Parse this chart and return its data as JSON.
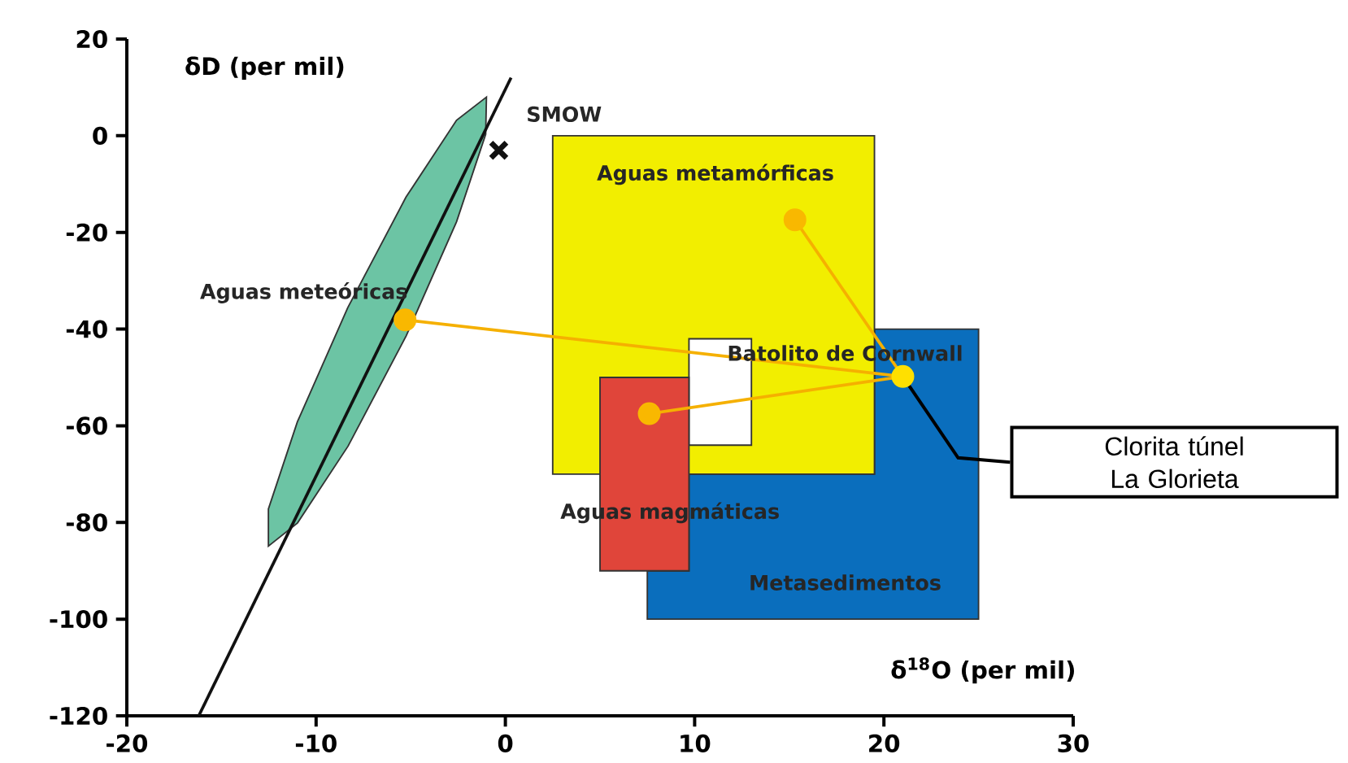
{
  "chart_data": {
    "type": "scatter",
    "xlabel": "δ$^{18}$O (per mil)",
    "ylabel": "δD (per mil)",
    "xlim": [
      -20,
      30
    ],
    "ylim": [
      -120,
      20
    ],
    "xticks": [
      -20,
      -10,
      0,
      10,
      20,
      30
    ],
    "yticks": [
      -120,
      -100,
      -80,
      -60,
      -40,
      -20,
      0,
      20
    ],
    "grid": false,
    "series": [
      {
        "type": "area",
        "color": "#6cc4a4",
        "x": [
          -1,
          -1.04,
          -2.58,
          -5.24,
          -8.31,
          -10.98,
          -12.52,
          -12.52,
          -10.99,
          -8.33,
          -5.25,
          -2.58
        ],
        "values": [
          8,
          0.3,
          -17.8,
          -41.4,
          -64.2,
          -80.1,
          -84.9,
          -77.2,
          -59.2,
          -35.6,
          -12.7,
          3.2
        ]
      },
      {
        "type": "area",
        "color": "#0a6ebd",
        "x": [
          7.5,
          7.5,
          9.7,
          9.7,
          19.5,
          19.5,
          25,
          25
        ],
        "values": [
          -100,
          -90,
          -90,
          -70,
          -70,
          -40,
          -40,
          -100
        ]
      },
      {
        "type": "area",
        "color": "#f2ee00",
        "x": [
          2.5,
          2.5,
          19.5,
          19.5
        ],
        "values": [
          -70,
          0,
          0,
          -70
        ]
      },
      {
        "type": "area",
        "color": "#ffffff",
        "x": [
          9.7,
          9.7,
          13,
          13
        ],
        "values": [
          -64,
          -42,
          -42,
          -64
        ]
      },
      {
        "type": "area",
        "color": "#e0453a",
        "x": [
          5,
          5,
          9.7,
          9.7
        ],
        "values": [
          -90,
          -50,
          -50,
          -90
        ]
      },
      {
        "type": "line",
        "color": "#111111",
        "x": [
          -16.2,
          0.3
        ],
        "values": [
          -120,
          12
        ]
      },
      {
        "type": "line",
        "color": "#f5b000",
        "x": [
          -5.3,
          21
        ],
        "values": [
          -38.1,
          -49.8
        ]
      },
      {
        "type": "line",
        "color": "#f5b000",
        "x": [
          15.3,
          21
        ],
        "values": [
          -17.4,
          -49.8
        ]
      },
      {
        "type": "line",
        "color": "#f5b000",
        "x": [
          7.6,
          21
        ],
        "values": [
          -57.5,
          -49.8
        ]
      },
      {
        "color": "#f9b800",
        "marker": "circle",
        "x": [
          -5.3,
          15.3,
          7.6
        ],
        "values": [
          -38.1,
          -17.4,
          -57.5
        ]
      },
      {
        "color": "#ffe000",
        "marker": "circle",
        "x": [
          21
        ],
        "values": [
          -49.8
        ]
      },
      {
        "color": "#111111",
        "marker": "cross",
        "x": [
          -0.35
        ],
        "values": [
          -3
        ]
      }
    ],
    "annotations": [
      "SMOW",
      "Aguas meteóricas",
      "Aguas metamórficas",
      "Batolito de Cornwall",
      "Aguas magmáticas",
      "Metasedimentos",
      "Clorita túnel La Glorieta"
    ]
  }
}
